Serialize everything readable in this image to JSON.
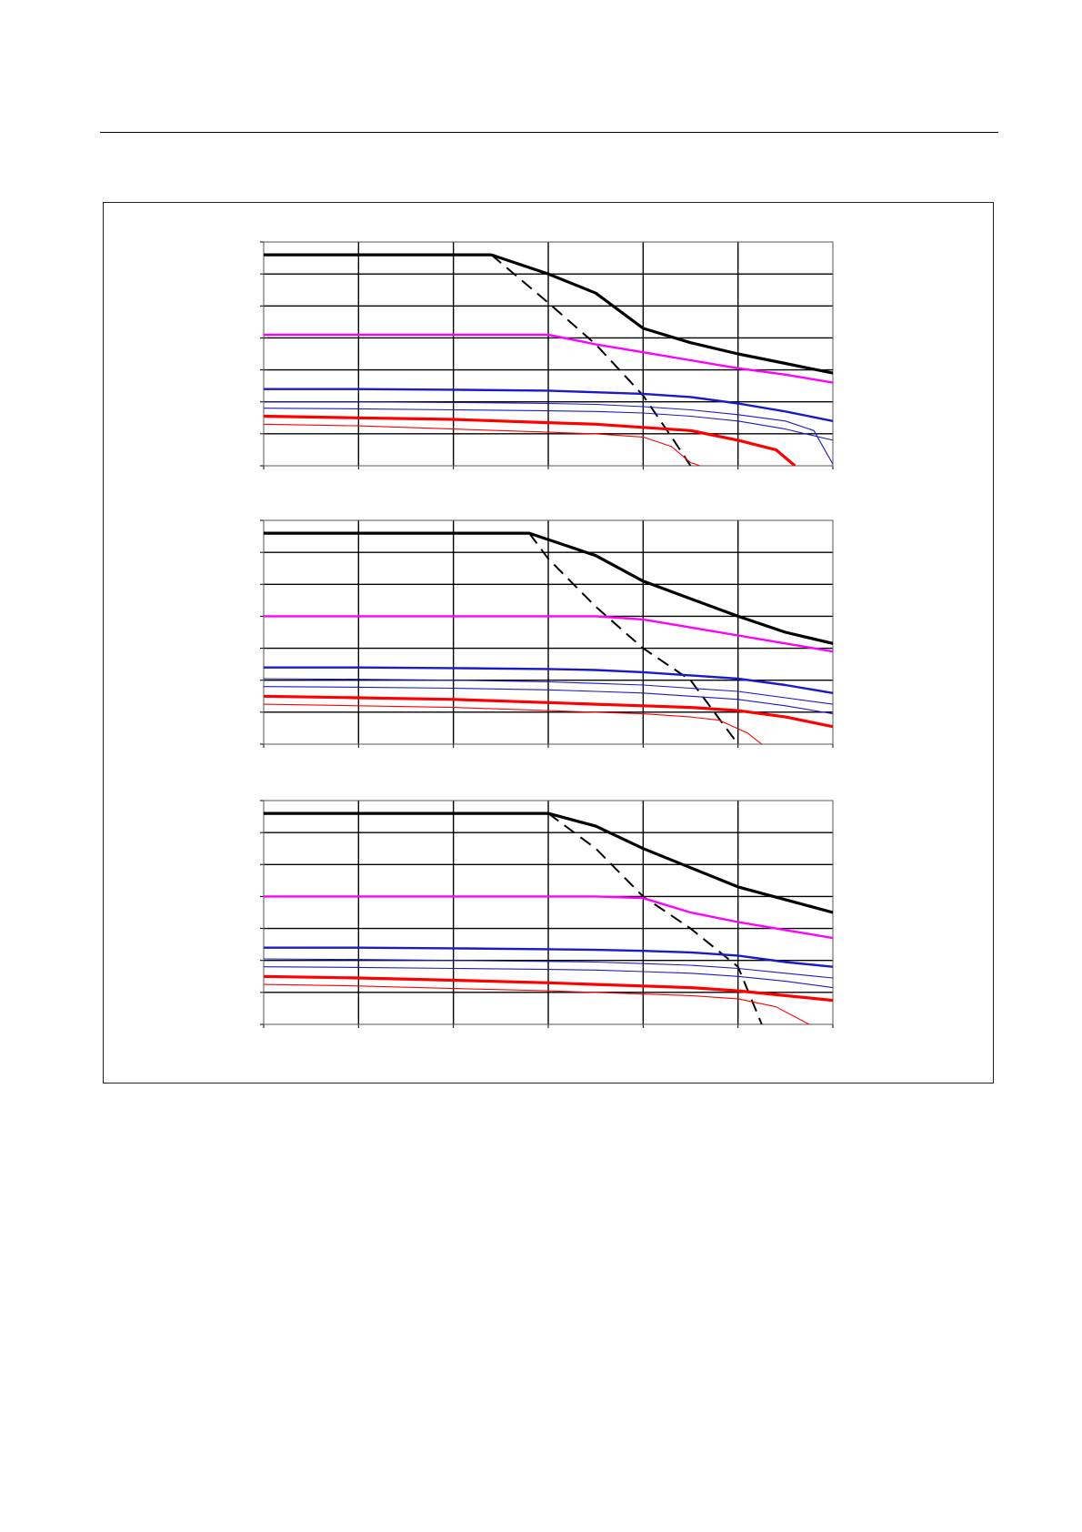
{
  "chart_data": [
    {
      "type": "line",
      "xlim": [
        0,
        6
      ],
      "ylim": [
        0,
        7
      ],
      "grid": true,
      "series": [
        {
          "color": "#000000",
          "width": 3.2,
          "dash": "",
          "points": [
            [
              0,
              6.6
            ],
            [
              1,
              6.6
            ],
            [
              2,
              6.6
            ],
            [
              2.4,
              6.6
            ],
            [
              3,
              6
            ],
            [
              3.5,
              5.4
            ],
            [
              4,
              4.3
            ],
            [
              4.5,
              3.85
            ],
            [
              5,
              3.5
            ],
            [
              5.5,
              3.2
            ],
            [
              6,
              2.9
            ]
          ]
        },
        {
          "color": "#000000",
          "width": 2.0,
          "dash": "14,8",
          "points": [
            [
              2.4,
              6.6
            ],
            [
              3,
              5.1
            ],
            [
              3.5,
              3.8
            ],
            [
              4,
              2.2
            ],
            [
              4.3,
              0.9
            ],
            [
              4.5,
              0
            ]
          ]
        },
        {
          "color": "#ff00ff",
          "width": 2.4,
          "dash": "",
          "points": [
            [
              0,
              4.1
            ],
            [
              1,
              4.1
            ],
            [
              2,
              4.1
            ],
            [
              3,
              4.1
            ],
            [
              3.5,
              3.8
            ],
            [
              4,
              3.55
            ],
            [
              4.5,
              3.3
            ],
            [
              5,
              3.05
            ],
            [
              5.5,
              2.85
            ],
            [
              6,
              2.6
            ]
          ]
        },
        {
          "color": "#1a1ac8",
          "width": 2.4,
          "dash": "",
          "points": [
            [
              0,
              2.4
            ],
            [
              1,
              2.4
            ],
            [
              2,
              2.38
            ],
            [
              3,
              2.35
            ],
            [
              3.5,
              2.3
            ],
            [
              4,
              2.25
            ],
            [
              4.5,
              2.15
            ],
            [
              5,
              1.95
            ],
            [
              5.5,
              1.7
            ],
            [
              6,
              1.4
            ]
          ]
        },
        {
          "color": "#1a1ac8",
          "width": 1.1,
          "dash": "",
          "points": [
            [
              0,
              2.0
            ],
            [
              1,
              2.0
            ],
            [
              2,
              1.98
            ],
            [
              3,
              1.95
            ],
            [
              3.5,
              1.92
            ],
            [
              4,
              1.85
            ],
            [
              4.5,
              1.75
            ],
            [
              5,
              1.6
            ],
            [
              5.5,
              1.4
            ],
            [
              5.8,
              1.1
            ],
            [
              6,
              0.05
            ]
          ]
        },
        {
          "color": "#1a1ac8",
          "width": 1.1,
          "dash": "",
          "points": [
            [
              0,
              1.8
            ],
            [
              1,
              1.78
            ],
            [
              2,
              1.75
            ],
            [
              3,
              1.72
            ],
            [
              3.5,
              1.7
            ],
            [
              4,
              1.65
            ],
            [
              4.5,
              1.55
            ],
            [
              5,
              1.4
            ],
            [
              5.5,
              1.15
            ],
            [
              6,
              0.8
            ]
          ]
        },
        {
          "color": "#ff0000",
          "width": 3.2,
          "dash": "",
          "points": [
            [
              0,
              1.55
            ],
            [
              1,
              1.5
            ],
            [
              2,
              1.45
            ],
            [
              3,
              1.35
            ],
            [
              3.5,
              1.3
            ],
            [
              4,
              1.2
            ],
            [
              4.5,
              1.1
            ],
            [
              5,
              0.8
            ],
            [
              5.4,
              0.5
            ],
            [
              5.6,
              0
            ]
          ]
        },
        {
          "color": "#ff0000",
          "width": 1.1,
          "dash": "",
          "points": [
            [
              0,
              1.3
            ],
            [
              1,
              1.25
            ],
            [
              2,
              1.15
            ],
            [
              3,
              1.05
            ],
            [
              3.5,
              1.0
            ],
            [
              4,
              0.9
            ],
            [
              4.3,
              0.6
            ],
            [
              4.5,
              0.1
            ],
            [
              4.6,
              0
            ]
          ]
        }
      ]
    },
    {
      "type": "line",
      "xlim": [
        0,
        6
      ],
      "ylim": [
        0,
        7
      ],
      "grid": true,
      "series": [
        {
          "color": "#000000",
          "width": 3.2,
          "dash": "",
          "points": [
            [
              0,
              6.6
            ],
            [
              1,
              6.6
            ],
            [
              2,
              6.6
            ],
            [
              2.8,
              6.6
            ],
            [
              3,
              6.4
            ],
            [
              3.5,
              5.9
            ],
            [
              4,
              5.1
            ],
            [
              4.5,
              4.55
            ],
            [
              5,
              4.0
            ],
            [
              5.5,
              3.5
            ],
            [
              6,
              3.15
            ]
          ]
        },
        {
          "color": "#000000",
          "width": 2.0,
          "dash": "14,8",
          "points": [
            [
              2.8,
              6.6
            ],
            [
              3,
              5.8
            ],
            [
              3.5,
              4.3
            ],
            [
              4,
              3.0
            ],
            [
              4.5,
              2.0
            ],
            [
              5,
              0
            ]
          ]
        },
        {
          "color": "#ff00ff",
          "width": 2.4,
          "dash": "",
          "points": [
            [
              0,
              4.0
            ],
            [
              1,
              4.0
            ],
            [
              2,
              4.0
            ],
            [
              3,
              4.0
            ],
            [
              3.5,
              4.0
            ],
            [
              4,
              3.9
            ],
            [
              4.5,
              3.65
            ],
            [
              5,
              3.4
            ],
            [
              5.5,
              3.15
            ],
            [
              6,
              2.9
            ]
          ]
        },
        {
          "color": "#1a1ac8",
          "width": 2.4,
          "dash": "",
          "points": [
            [
              0,
              2.4
            ],
            [
              1,
              2.4
            ],
            [
              2,
              2.38
            ],
            [
              3,
              2.35
            ],
            [
              3.5,
              2.32
            ],
            [
              4,
              2.25
            ],
            [
              4.5,
              2.15
            ],
            [
              5,
              2.05
            ],
            [
              5.5,
              1.85
            ],
            [
              6,
              1.6
            ]
          ]
        },
        {
          "color": "#1a1ac8",
          "width": 1.1,
          "dash": "",
          "points": [
            [
              0,
              2.05
            ],
            [
              1,
              2.03
            ],
            [
              2,
              2.0
            ],
            [
              3,
              1.95
            ],
            [
              3.5,
              1.9
            ],
            [
              4,
              1.85
            ],
            [
              4.5,
              1.75
            ],
            [
              5,
              1.65
            ],
            [
              5.5,
              1.45
            ],
            [
              6,
              1.25
            ]
          ]
        },
        {
          "color": "#1a1ac8",
          "width": 1.1,
          "dash": "",
          "points": [
            [
              0,
              1.8
            ],
            [
              1,
              1.78
            ],
            [
              2,
              1.75
            ],
            [
              3,
              1.7
            ],
            [
              3.5,
              1.65
            ],
            [
              4,
              1.6
            ],
            [
              4.5,
              1.5
            ],
            [
              5,
              1.4
            ],
            [
              5.5,
              1.2
            ],
            [
              6,
              0.95
            ]
          ]
        },
        {
          "color": "#ff0000",
          "width": 3.2,
          "dash": "",
          "points": [
            [
              0,
              1.5
            ],
            [
              1,
              1.45
            ],
            [
              2,
              1.4
            ],
            [
              3,
              1.3
            ],
            [
              3.5,
              1.25
            ],
            [
              4,
              1.2
            ],
            [
              4.5,
              1.15
            ],
            [
              5,
              1.05
            ],
            [
              5.5,
              0.85
            ],
            [
              6,
              0.55
            ]
          ]
        },
        {
          "color": "#ff0000",
          "width": 1.1,
          "dash": "",
          "points": [
            [
              0,
              1.25
            ],
            [
              1,
              1.2
            ],
            [
              2,
              1.15
            ],
            [
              3,
              1.05
            ],
            [
              3.5,
              1.0
            ],
            [
              4,
              0.95
            ],
            [
              4.5,
              0.85
            ],
            [
              4.8,
              0.75
            ],
            [
              5.1,
              0.35
            ],
            [
              5.25,
              0
            ]
          ]
        }
      ]
    },
    {
      "type": "line",
      "xlim": [
        0,
        6
      ],
      "ylim": [
        0,
        7
      ],
      "grid": true,
      "series": [
        {
          "color": "#000000",
          "width": 3.2,
          "dash": "",
          "points": [
            [
              0,
              6.6
            ],
            [
              1,
              6.6
            ],
            [
              2,
              6.6
            ],
            [
              3,
              6.6
            ],
            [
              3.5,
              6.2
            ],
            [
              4,
              5.5
            ],
            [
              4.5,
              4.9
            ],
            [
              5,
              4.3
            ],
            [
              5.5,
              3.9
            ],
            [
              6,
              3.5
            ]
          ]
        },
        {
          "color": "#000000",
          "width": 2.0,
          "dash": "14,8",
          "points": [
            [
              3,
              6.6
            ],
            [
              3.5,
              5.5
            ],
            [
              4,
              4.0
            ],
            [
              4.5,
              3.0
            ],
            [
              5,
              1.8
            ],
            [
              5.25,
              0
            ]
          ]
        },
        {
          "color": "#ff00ff",
          "width": 2.4,
          "dash": "",
          "points": [
            [
              0,
              4.0
            ],
            [
              1,
              4.0
            ],
            [
              2,
              4.0
            ],
            [
              3,
              4.0
            ],
            [
              3.5,
              4.0
            ],
            [
              4,
              3.95
            ],
            [
              4.5,
              3.5
            ],
            [
              5,
              3.2
            ],
            [
              5.5,
              2.95
            ],
            [
              6,
              2.7
            ]
          ]
        },
        {
          "color": "#1a1ac8",
          "width": 2.4,
          "dash": "",
          "points": [
            [
              0,
              2.4
            ],
            [
              1,
              2.4
            ],
            [
              2,
              2.38
            ],
            [
              3,
              2.35
            ],
            [
              3.5,
              2.33
            ],
            [
              4,
              2.3
            ],
            [
              4.5,
              2.25
            ],
            [
              5,
              2.15
            ],
            [
              5.5,
              1.95
            ],
            [
              6,
              1.8
            ]
          ]
        },
        {
          "color": "#1a1ac8",
          "width": 1.1,
          "dash": "",
          "points": [
            [
              0,
              2.05
            ],
            [
              1,
              2.03
            ],
            [
              2,
              2.0
            ],
            [
              3,
              1.97
            ],
            [
              3.5,
              1.95
            ],
            [
              4,
              1.9
            ],
            [
              4.5,
              1.85
            ],
            [
              5,
              1.75
            ],
            [
              5.5,
              1.6
            ],
            [
              6,
              1.45
            ]
          ]
        },
        {
          "color": "#1a1ac8",
          "width": 1.1,
          "dash": "",
          "points": [
            [
              0,
              1.8
            ],
            [
              1,
              1.78
            ],
            [
              2,
              1.75
            ],
            [
              3,
              1.72
            ],
            [
              3.5,
              1.7
            ],
            [
              4,
              1.65
            ],
            [
              4.5,
              1.6
            ],
            [
              5,
              1.5
            ],
            [
              5.5,
              1.35
            ],
            [
              6,
              1.15
            ]
          ]
        },
        {
          "color": "#ff0000",
          "width": 3.2,
          "dash": "",
          "points": [
            [
              0,
              1.5
            ],
            [
              1,
              1.45
            ],
            [
              2,
              1.38
            ],
            [
              3,
              1.3
            ],
            [
              3.5,
              1.25
            ],
            [
              4,
              1.2
            ],
            [
              4.5,
              1.15
            ],
            [
              5,
              1.05
            ],
            [
              5.5,
              0.9
            ],
            [
              6,
              0.75
            ]
          ]
        },
        {
          "color": "#ff0000",
          "width": 1.1,
          "dash": "",
          "points": [
            [
              0,
              1.25
            ],
            [
              1,
              1.2
            ],
            [
              2,
              1.12
            ],
            [
              3,
              1.05
            ],
            [
              3.5,
              1.0
            ],
            [
              4,
              0.95
            ],
            [
              4.5,
              0.9
            ],
            [
              5,
              0.8
            ],
            [
              5.4,
              0.55
            ],
            [
              5.75,
              0
            ]
          ]
        }
      ]
    }
  ]
}
